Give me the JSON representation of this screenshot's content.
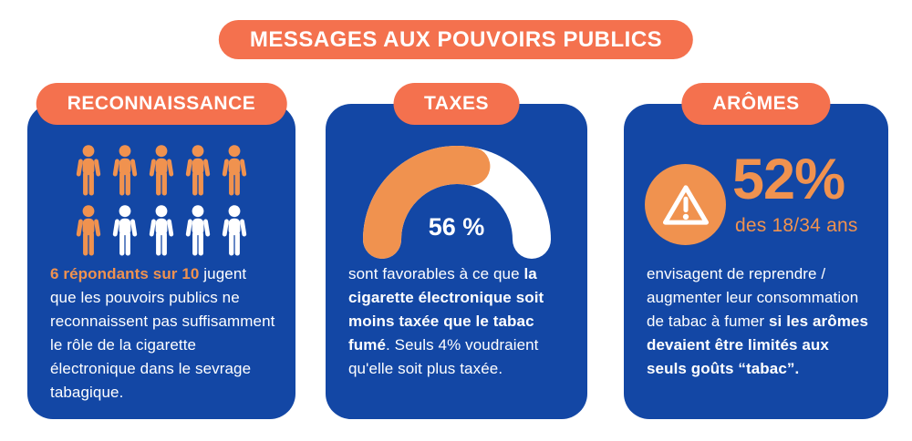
{
  "header": {
    "title": "MESSAGES AUX POUVOIRS PUBLICS"
  },
  "colors": {
    "card_blue": "#1347A5",
    "pill_orange": "#F4714E",
    "accent_orange": "#F0924F",
    "white": "#FFFFFF"
  },
  "cards": [
    {
      "id": "reconnaissance",
      "title": "RECONNAISSANCE",
      "pictogram": {
        "icon": "person-icon",
        "total": 10,
        "highlighted": 6
      },
      "text": [
        {
          "t": "6 répondants sur 10",
          "style": "bold-orange"
        },
        {
          "t": " jugent que les pouvoirs publics ne reconnaissent pas suffisamment le rôle de la cigarette électronique dans le sevrage tabagique.",
          "style": "normal"
        }
      ]
    },
    {
      "id": "taxes",
      "title": "TAXES",
      "gauge": {
        "percent": 56,
        "value_label": "56 %"
      },
      "text": [
        {
          "t": "sont favorables à ce que ",
          "style": "normal"
        },
        {
          "t": "la cigarette électronique soit moins taxée que le tabac fumé",
          "style": "bold"
        },
        {
          "t": ". Seuls 4% voudraient qu'elle soit plus taxée.",
          "style": "normal"
        }
      ]
    },
    {
      "id": "aromes",
      "title": "ARÔMES",
      "stat": {
        "icon": "warning-icon",
        "value": "52%",
        "subtitle": "des 18/34 ans"
      },
      "text": [
        {
          "t": "envisagent de reprendre / augmenter leur consommation de tabac à fumer ",
          "style": "normal"
        },
        {
          "t": "si les arômes devaient être limités aux seuls goûts “tabac”.",
          "style": "bold"
        }
      ]
    }
  ],
  "chart_data": [
    {
      "type": "pictogram",
      "title": "RECONNAISSANCE",
      "value": 6,
      "total": 10,
      "label": "6 répondants sur 10",
      "description": "jugent que les pouvoirs publics ne reconnaissent pas suffisamment le rôle de la cigarette électronique dans le sevrage tabagique.",
      "highlight_color": "#F0924F",
      "rest_color": "#FFFFFF"
    },
    {
      "type": "gauge",
      "title": "TAXES",
      "value": 56,
      "max": 100,
      "label": "56 %",
      "description": "sont favorables à ce que la cigarette électronique soit moins taxée que le tabac fumé. Seuls 4% voudraient qu'elle soit plus taxée.",
      "value_color": "#F0924F",
      "track_color": "#FFFFFF"
    },
    {
      "type": "stat",
      "title": "ARÔMES",
      "value": 52,
      "unit": "%",
      "subject": "des 18/34 ans",
      "description": "envisagent de reprendre / augmenter leur consommation de tabac à fumer si les arômes devaient être limités aux seuls goûts “tabac”."
    }
  ]
}
